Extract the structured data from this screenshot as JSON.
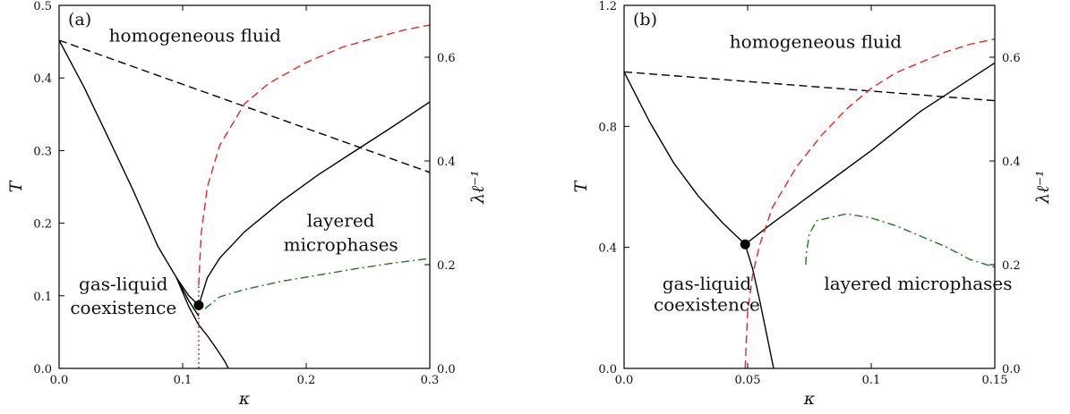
{
  "chart_data": [
    {
      "type": "line",
      "panel_label": "(a)",
      "xlabel": "κ",
      "ylabel": "T",
      "y2label": "λℓ⁻¹",
      "xlim": [
        0,
        0.3
      ],
      "ylim": [
        0,
        0.5
      ],
      "y2lim": [
        0,
        0.7
      ],
      "xticks": [
        "0.0",
        "0.1",
        "0.2",
        "0.3"
      ],
      "yticks": [
        "0.0",
        "0.1",
        "0.2",
        "0.3",
        "0.4",
        "0.5"
      ],
      "y2ticks": [
        "0.0",
        "0.2",
        "0.4",
        "0.6"
      ],
      "grid": false,
      "annotations": [
        {
          "text": "homogeneous fluid",
          "x": 0.11,
          "y": 0.45
        },
        {
          "text": "layered",
          "x": 0.228,
          "y": 0.195
        },
        {
          "text": "microphases",
          "x": 0.228,
          "y": 0.162
        },
        {
          "text": "gas-liquid",
          "x": 0.052,
          "y": 0.108
        },
        {
          "text": "coexistence",
          "x": 0.052,
          "y": 0.075
        }
      ],
      "critical_point": {
        "x": 0.113,
        "y": 0.087
      },
      "series": [
        {
          "style": "solid",
          "color": "#000000",
          "axis": "left",
          "x": [
            0,
            0.02,
            0.04,
            0.06,
            0.08,
            0.095,
            0.105,
            0.113
          ],
          "y": [
            0.452,
            0.388,
            0.317,
            0.245,
            0.168,
            0.125,
            0.1,
            0.087
          ]
        },
        {
          "style": "solid",
          "color": "#000000",
          "axis": "left",
          "x": [
            0.095,
            0.105,
            0.113,
            0.12,
            0.127,
            0.134,
            0.137
          ],
          "y": [
            0.125,
            0.085,
            0.06,
            0.045,
            0.028,
            0.01,
            0.0
          ]
        },
        {
          "style": "solid",
          "color": "#000000",
          "axis": "left",
          "x": [
            0.095,
            0.105,
            0.113
          ],
          "y": [
            0.125,
            0.093,
            0.072
          ]
        },
        {
          "style": "solid",
          "color": "#000000",
          "axis": "left",
          "x": [
            0.113,
            0.12,
            0.13,
            0.15,
            0.18,
            0.21,
            0.24,
            0.27,
            0.3
          ],
          "y": [
            0.087,
            0.125,
            0.152,
            0.188,
            0.23,
            0.267,
            0.3,
            0.333,
            0.367
          ]
        },
        {
          "style": "dashed",
          "color": "#000000",
          "axis": "left",
          "x": [
            0,
            0.3
          ],
          "y": [
            0.452,
            0.27
          ]
        },
        {
          "style": "dashed",
          "color": "#e8251f",
          "axis": "right",
          "x": [
            0.113,
            0.115,
            0.12,
            0.13,
            0.15,
            0.17,
            0.2,
            0.23,
            0.26,
            0.28,
            0.3
          ],
          "y": [
            0.16,
            0.26,
            0.35,
            0.43,
            0.51,
            0.55,
            0.59,
            0.62,
            0.64,
            0.653,
            0.662
          ]
        },
        {
          "style": "dotted",
          "color": "#e8251f",
          "axis": "right",
          "x": [
            0.113,
            0.113
          ],
          "y": [
            0.0,
            0.16
          ]
        },
        {
          "style": "dashdot",
          "color": "#1a7a1a",
          "axis": "right",
          "x": [
            0.118,
            0.13,
            0.15,
            0.18,
            0.21,
            0.24,
            0.27,
            0.3
          ],
          "y": [
            0.115,
            0.138,
            0.152,
            0.168,
            0.18,
            0.192,
            0.203,
            0.212
          ]
        }
      ]
    },
    {
      "type": "line",
      "panel_label": "(b)",
      "xlabel": "κ",
      "ylabel": "T",
      "y2label": "λℓ⁻¹",
      "xlim": [
        0,
        0.15
      ],
      "ylim": [
        0,
        1.2
      ],
      "y2lim": [
        0,
        0.7
      ],
      "xticks": [
        "0.0",
        "0.05",
        "0.1",
        "0.15"
      ],
      "yticks": [
        "0.0",
        "0.4",
        "0.8",
        "1.2"
      ],
      "y2ticks": [
        "0.0",
        "0.2",
        "0.4",
        "0.6"
      ],
      "grid": false,
      "annotations": [
        {
          "text": "homogeneous fluid",
          "x": 0.0775,
          "y": 1.06
        },
        {
          "text": "layered microphases",
          "x": 0.119,
          "y": 0.26
        },
        {
          "text": "gas-liquid",
          "x": 0.0335,
          "y": 0.26
        },
        {
          "text": "coexistence",
          "x": 0.0335,
          "y": 0.19
        }
      ],
      "critical_point": {
        "x": 0.049,
        "y": 0.41
      },
      "series": [
        {
          "style": "solid",
          "color": "#000000",
          "axis": "left",
          "x": [
            0,
            0.01,
            0.02,
            0.03,
            0.04,
            0.049
          ],
          "y": [
            0.98,
            0.82,
            0.68,
            0.57,
            0.48,
            0.41
          ]
        },
        {
          "style": "solid",
          "color": "#000000",
          "axis": "left",
          "x": [
            0.049,
            0.052,
            0.055,
            0.058,
            0.0605
          ],
          "y": [
            0.41,
            0.33,
            0.22,
            0.1,
            0.0
          ]
        },
        {
          "style": "solid",
          "color": "#000000",
          "axis": "left",
          "x": [
            0.049,
            0.06,
            0.08,
            0.1,
            0.12,
            0.15
          ],
          "y": [
            0.41,
            0.48,
            0.6,
            0.72,
            0.85,
            1.01
          ]
        },
        {
          "style": "dashed",
          "color": "#000000",
          "axis": "left",
          "x": [
            0,
            0.15
          ],
          "y": [
            0.98,
            0.885
          ]
        },
        {
          "style": "dashed",
          "color": "#e8251f",
          "axis": "right",
          "x": [
            0.049,
            0.05,
            0.052,
            0.055,
            0.06,
            0.07,
            0.08,
            0.09,
            0.1,
            0.11,
            0.12,
            0.13,
            0.14,
            0.15
          ],
          "y": [
            0.0,
            0.11,
            0.18,
            0.24,
            0.31,
            0.39,
            0.45,
            0.5,
            0.54,
            0.57,
            0.59,
            0.61,
            0.625,
            0.635
          ]
        },
        {
          "style": "dashdot",
          "color": "#1a7a1a",
          "axis": "right",
          "x": [
            0.0735,
            0.0737,
            0.075,
            0.078,
            0.09,
            0.1,
            0.11,
            0.12,
            0.13,
            0.14,
            0.15
          ],
          "y": [
            0.2,
            0.22,
            0.26,
            0.285,
            0.298,
            0.29,
            0.275,
            0.255,
            0.235,
            0.21,
            0.195
          ]
        }
      ]
    }
  ]
}
